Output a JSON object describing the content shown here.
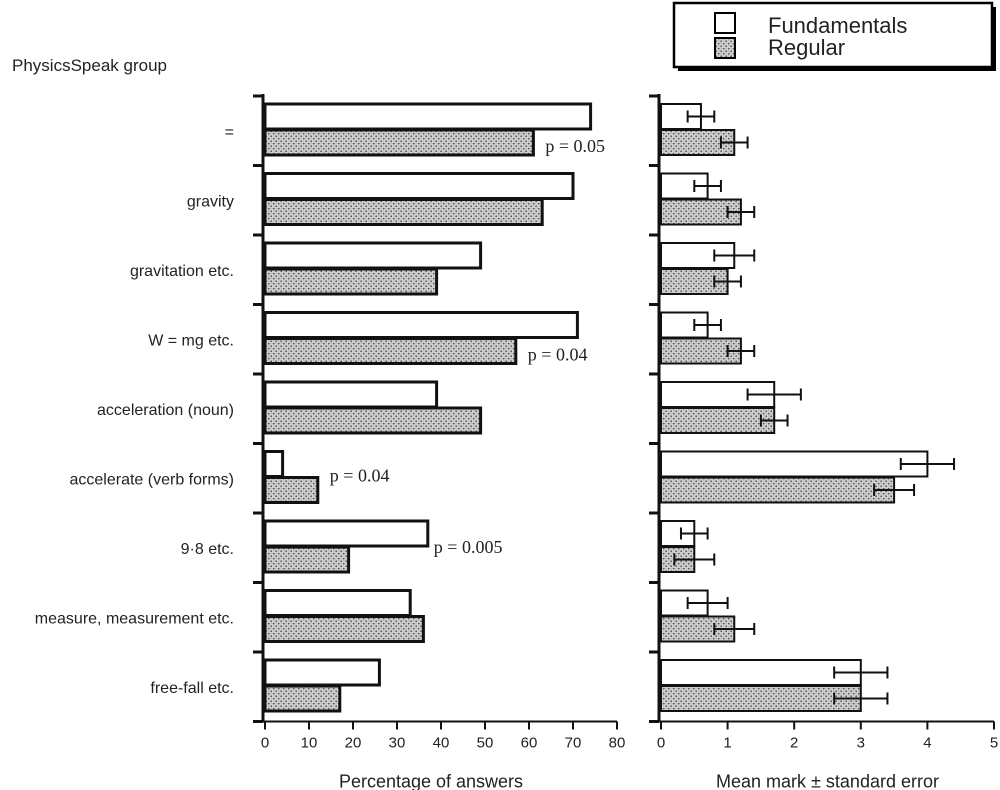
{
  "group_label": "PhysicsSpeak group",
  "legend": {
    "entries": [
      {
        "name": "Fundamentals",
        "pattern": "white"
      },
      {
        "name": "Regular",
        "pattern": "stipple"
      }
    ],
    "placement": "top-right"
  },
  "colors": {
    "fundamentals_fill": "#ffffff",
    "regular_fill": "#cfcfcf",
    "stipple_dot": "#666666",
    "outline": "#111111"
  },
  "chart_data": [
    {
      "type": "bar",
      "orientation": "horizontal",
      "xlabel": "Percentage of answers",
      "ylabel": "",
      "xlim": [
        0,
        80
      ],
      "xticks": [
        "0",
        "10",
        "20",
        "30",
        "40",
        "50",
        "60",
        "70",
        "80"
      ],
      "categories": [
        "=",
        "gravity",
        "gravitation etc.",
        "W = mg etc.",
        "acceleration (noun)",
        "accelerate (verb forms)",
        "9·8 etc.",
        "measure, measurement etc.",
        "free-fall etc."
      ],
      "series": [
        {
          "name": "Fundamentals",
          "values": [
            74,
            70,
            49,
            71,
            39,
            4,
            37,
            33,
            26
          ]
        },
        {
          "name": "Regular",
          "values": [
            61,
            63,
            39,
            57,
            49,
            12,
            19,
            36,
            17
          ]
        }
      ],
      "annotations": [
        {
          "category_index": 0,
          "text": "p = 0.05"
        },
        {
          "category_index": 3,
          "text": "p = 0.04"
        },
        {
          "category_index": 5,
          "text": "p = 0.04"
        },
        {
          "category_index": 6,
          "text": "p = 0.005"
        }
      ]
    },
    {
      "type": "bar",
      "orientation": "horizontal",
      "xlabel": "Mean mark ± standard error",
      "ylabel": "",
      "xlim": [
        0,
        5
      ],
      "xticks": [
        "0",
        "1",
        "2",
        "3",
        "4",
        "5"
      ],
      "categories": [
        "=",
        "gravity",
        "gravitation etc.",
        "W = mg etc.",
        "acceleration (noun)",
        "accelerate (verb forms)",
        "9·8 etc.",
        "measure, measurement etc.",
        "free-fall etc."
      ],
      "series": [
        {
          "name": "Fundamentals",
          "values": [
            0.6,
            0.7,
            1.1,
            0.7,
            1.7,
            4.0,
            0.5,
            0.7,
            3.0
          ],
          "errors": [
            0.2,
            0.2,
            0.3,
            0.2,
            0.4,
            0.4,
            0.2,
            0.3,
            0.4
          ]
        },
        {
          "name": "Regular",
          "values": [
            1.1,
            1.2,
            1.0,
            1.2,
            1.7,
            3.5,
            0.5,
            1.1,
            3.0
          ],
          "errors": [
            0.2,
            0.2,
            0.2,
            0.2,
            0.2,
            0.3,
            0.3,
            0.3,
            0.4
          ]
        }
      ]
    }
  ]
}
